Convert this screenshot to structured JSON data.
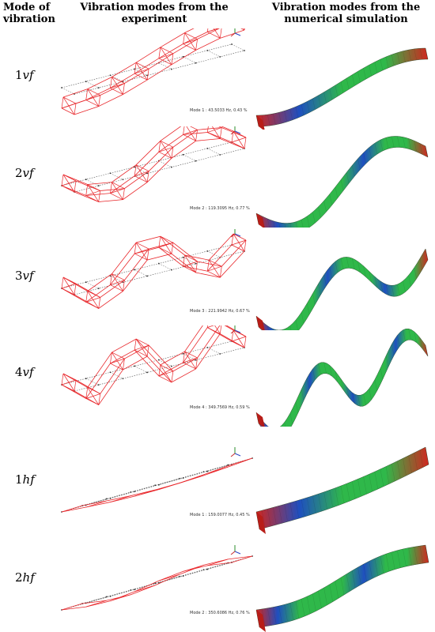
{
  "headers": {
    "mode": "Mode of vibration",
    "experiment": "Vibration modes from the experiment",
    "simulation": "Vibration modes from the numerical simulation"
  },
  "modes": [
    {
      "num": "1",
      "suffix": "vf",
      "caption": "Mode 1 : 43.5033 Hz, 0.43 %"
    },
    {
      "num": "2",
      "suffix": "vf",
      "caption": "Mode 2 : 119.3095 Hz, 0.77 %"
    },
    {
      "num": "3",
      "suffix": "vf",
      "caption": "Mode 3 : 221.9942 Hz, 0.67 %"
    },
    {
      "num": "4",
      "suffix": "vf",
      "caption": "Mode 4 : 349.7569 Hz, 0.59 %"
    },
    {
      "num": "1",
      "suffix": "hf",
      "caption": "Mode 1 : 159.0077 Hz, 0.45 %"
    },
    {
      "num": "2",
      "suffix": "hf",
      "caption": "Mode 2 : 350.6086 Hz, 0.76 %"
    }
  ],
  "colors": {
    "mesh": "#e8262a",
    "grid": "#555555",
    "fe_low": "#1f4fbf",
    "fe_mid": "#2fb84a",
    "fe_high": "#d0261f"
  }
}
